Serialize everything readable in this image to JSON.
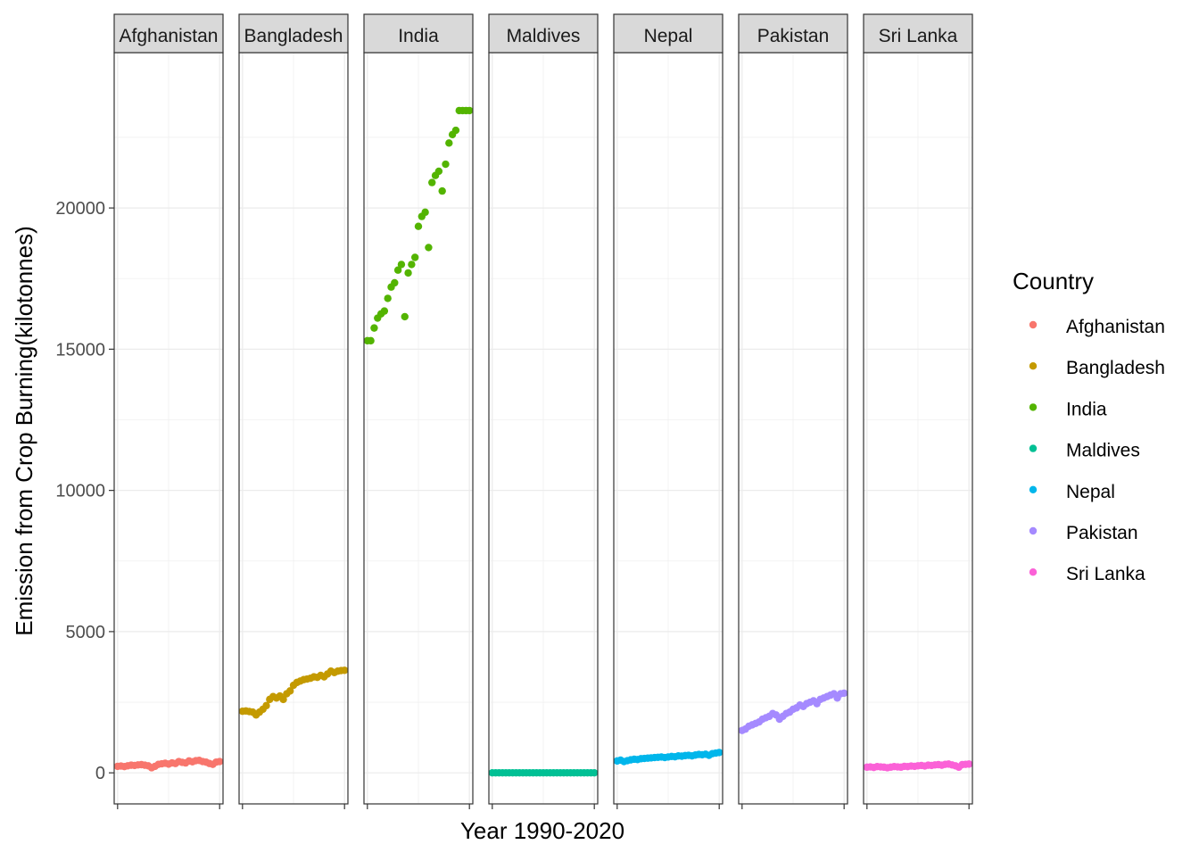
{
  "chart_data": {
    "type": "scatter",
    "title": "",
    "xlabel": "Year 1990-2020",
    "ylabel": "Emission from Crop Burning(kilotonnes)",
    "xlim": [
      1989,
      2021
    ],
    "ylim": [
      -1100,
      25500
    ],
    "y_ticks": [
      0,
      5000,
      10000,
      15000,
      20000
    ],
    "y_tick_labels": [
      "0",
      "5000",
      "10000",
      "15000",
      "20000"
    ],
    "x_ticks": [
      1990,
      2020
    ],
    "grid": true,
    "facet_by": "Country",
    "legend": {
      "title": "Country",
      "position": "right"
    },
    "series": [
      {
        "name": "Afghanistan",
        "color": "#F8766D",
        "x": [
          1990,
          1991,
          1992,
          1993,
          1994,
          1995,
          1996,
          1997,
          1998,
          1999,
          2000,
          2001,
          2002,
          2003,
          2004,
          2005,
          2006,
          2007,
          2008,
          2009,
          2010,
          2011,
          2012,
          2013,
          2014,
          2015,
          2016,
          2017,
          2018,
          2019,
          2020
        ],
        "y": [
          230,
          240,
          220,
          250,
          270,
          260,
          280,
          290,
          270,
          250,
          180,
          230,
          300,
          320,
          340,
          310,
          350,
          330,
          400,
          370,
          350,
          420,
          390,
          430,
          440,
          400,
          380,
          330,
          300,
          380,
          400
        ]
      },
      {
        "name": "Bangladesh",
        "color": "#C49A00",
        "x": [
          1990,
          1991,
          1992,
          1993,
          1994,
          1995,
          1996,
          1997,
          1998,
          1999,
          2000,
          2001,
          2002,
          2003,
          2004,
          2005,
          2006,
          2007,
          2008,
          2009,
          2010,
          2011,
          2012,
          2013,
          2014,
          2015,
          2016,
          2017,
          2018,
          2019,
          2020
        ],
        "y": [
          2180,
          2190,
          2170,
          2150,
          2050,
          2150,
          2250,
          2380,
          2600,
          2700,
          2650,
          2720,
          2600,
          2800,
          2900,
          3100,
          3200,
          3250,
          3300,
          3320,
          3350,
          3400,
          3380,
          3450,
          3400,
          3500,
          3600,
          3550,
          3600,
          3620,
          3630
        ]
      },
      {
        "name": "India",
        "color": "#53B400",
        "x": [
          1990,
          1991,
          1992,
          1993,
          1994,
          1995,
          1996,
          1997,
          1998,
          1999,
          2000,
          2001,
          2002,
          2003,
          2004,
          2005,
          2006,
          2007,
          2008,
          2009,
          2010,
          2011,
          2012,
          2013,
          2014,
          2015,
          2016,
          2017,
          2018,
          2019,
          2020
        ],
        "y": [
          15300,
          15300,
          15750,
          16100,
          16250,
          16350,
          16800,
          17200,
          17350,
          17800,
          18000,
          16150,
          17700,
          18000,
          18250,
          19350,
          19700,
          19850,
          18600,
          20900,
          21150,
          21300,
          20600,
          21550,
          22300,
          22600,
          22750,
          23450,
          23450,
          23450,
          23450
        ]
      },
      {
        "name": "Maldives",
        "color": "#00C094",
        "x": [
          1990,
          1991,
          1992,
          1993,
          1994,
          1995,
          1996,
          1997,
          1998,
          1999,
          2000,
          2001,
          2002,
          2003,
          2004,
          2005,
          2006,
          2007,
          2008,
          2009,
          2010,
          2011,
          2012,
          2013,
          2014,
          2015,
          2016,
          2017,
          2018,
          2019,
          2020
        ],
        "y": [
          0,
          0,
          0,
          0,
          0,
          0,
          0,
          0,
          0,
          0,
          0,
          0,
          0,
          0,
          0,
          0,
          0,
          0,
          0,
          0,
          0,
          0,
          0,
          0,
          0,
          0,
          0,
          0,
          0,
          0,
          0
        ]
      },
      {
        "name": "Nepal",
        "color": "#00B6EB",
        "x": [
          1990,
          1991,
          1992,
          1993,
          1994,
          1995,
          1996,
          1997,
          1998,
          1999,
          2000,
          2001,
          2002,
          2003,
          2004,
          2005,
          2006,
          2007,
          2008,
          2009,
          2010,
          2011,
          2012,
          2013,
          2014,
          2015,
          2016,
          2017,
          2018,
          2019,
          2020
        ],
        "y": [
          420,
          450,
          400,
          430,
          460,
          480,
          470,
          500,
          510,
          520,
          530,
          540,
          550,
          560,
          540,
          560,
          580,
          570,
          600,
          590,
          610,
          620,
          600,
          630,
          650,
          640,
          660,
          620,
          680,
          700,
          720
        ]
      },
      {
        "name": "Pakistan",
        "color": "#A58AFF",
        "x": [
          1990,
          1991,
          1992,
          1993,
          1994,
          1995,
          1996,
          1997,
          1998,
          1999,
          2000,
          2001,
          2002,
          2003,
          2004,
          2005,
          2006,
          2007,
          2008,
          2009,
          2010,
          2011,
          2012,
          2013,
          2014,
          2015,
          2016,
          2017,
          2018,
          2019,
          2020
        ],
        "y": [
          1500,
          1550,
          1650,
          1700,
          1750,
          1800,
          1900,
          1950,
          2000,
          2100,
          2050,
          1900,
          2000,
          2100,
          2150,
          2250,
          2300,
          2400,
          2350,
          2450,
          2500,
          2550,
          2450,
          2600,
          2650,
          2700,
          2750,
          2800,
          2650,
          2800,
          2820
        ]
      },
      {
        "name": "Sri Lanka",
        "color": "#FB61D7",
        "x": [
          1990,
          1991,
          1992,
          1993,
          1994,
          1995,
          1996,
          1997,
          1998,
          1999,
          2000,
          2001,
          2002,
          2003,
          2004,
          2005,
          2006,
          2007,
          2008,
          2009,
          2010,
          2011,
          2012,
          2013,
          2014,
          2015,
          2016,
          2017,
          2018,
          2019,
          2020
        ],
        "y": [
          200,
          210,
          190,
          220,
          210,
          200,
          180,
          200,
          220,
          210,
          200,
          230,
          220,
          240,
          230,
          250,
          260,
          240,
          270,
          260,
          280,
          290,
          270,
          300,
          310,
          280,
          250,
          200,
          290,
          300,
          310
        ]
      }
    ]
  }
}
